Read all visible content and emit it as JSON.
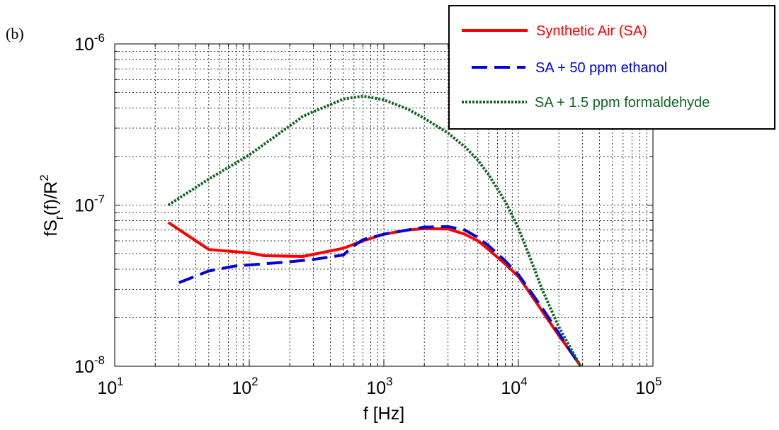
{
  "panel_label": "(b)",
  "chart_data": {
    "type": "line",
    "xscale": "log",
    "yscale": "log",
    "xlim": [
      10,
      100000
    ],
    "ylim": [
      1e-08,
      1e-06
    ],
    "grid": true,
    "legend_position": "top-right",
    "xlabel": "f [Hz]",
    "ylabel": {
      "base": "fS",
      "sub": "r",
      "mid": "(f)/R",
      "sup": "2"
    },
    "xticks": [
      {
        "base": "10",
        "exp": "1",
        "value": 10
      },
      {
        "base": "10",
        "exp": "2",
        "value": 100
      },
      {
        "base": "10",
        "exp": "3",
        "value": 1000
      },
      {
        "base": "10",
        "exp": "4",
        "value": 10000
      },
      {
        "base": "10",
        "exp": "5",
        "value": 100000
      }
    ],
    "yticks": [
      {
        "base": "10",
        "exp": "-8",
        "value": 1e-08
      },
      {
        "base": "10",
        "exp": "-7",
        "value": 1e-07
      },
      {
        "base": "10",
        "exp": "-6",
        "value": 1e-06
      }
    ],
    "series": [
      {
        "name": "Synthetic Air (SA)",
        "color": "#ff0000",
        "style": "solid",
        "x": [
          25,
          50,
          100,
          130,
          250,
          300,
          500,
          700,
          1000,
          1500,
          2000,
          3000,
          4000,
          5000,
          6000,
          8000,
          10000,
          12000,
          15000,
          20000,
          25000,
          29000
        ],
        "y": [
          7.8e-08,
          5.3e-08,
          5.05e-08,
          4.85e-08,
          4.8e-08,
          4.95e-08,
          5.4e-08,
          6e-08,
          6.6e-08,
          7e-08,
          7.15e-08,
          7.1e-08,
          6.6e-08,
          6e-08,
          5.3e-08,
          4.3e-08,
          3.6e-08,
          2.9e-08,
          2.2e-08,
          1.55e-08,
          1.2e-08,
          1e-08
        ]
      },
      {
        "name": "SA + 50 ppm ethanol",
        "color": "#0000dd",
        "style": "dashed",
        "x": [
          30,
          50,
          80,
          100,
          200,
          300,
          500,
          600,
          700,
          1000,
          1500,
          2000,
          3000,
          4000,
          5000,
          6000,
          8000,
          10000,
          12000,
          15000,
          20000,
          25000,
          29000
        ],
        "y": [
          3.3e-08,
          3.9e-08,
          4.2e-08,
          4.25e-08,
          4.45e-08,
          4.6e-08,
          4.9e-08,
          5.6e-08,
          6.1e-08,
          6.6e-08,
          7e-08,
          7.3e-08,
          7.35e-08,
          7e-08,
          6.3e-08,
          5.6e-08,
          4.5e-08,
          3.7e-08,
          3e-08,
          2.3e-08,
          1.6e-08,
          1.2e-08,
          1e-08
        ]
      },
      {
        "name": "SA + 1.5 ppm formaldehyde",
        "color": "#116622",
        "style": "dotted",
        "x": [
          25,
          50,
          100,
          200,
          250,
          300,
          400,
          500,
          700,
          1000,
          1500,
          2000,
          3000,
          4000,
          5000,
          6000,
          8000,
          10000,
          12000,
          15000,
          20000,
          25000,
          29000
        ],
        "y": [
          1e-07,
          1.45e-07,
          2.05e-07,
          3.1e-07,
          3.55e-07,
          3.8e-07,
          4.2e-07,
          4.55e-07,
          4.75e-07,
          4.5e-07,
          3.95e-07,
          3.45e-07,
          2.8e-07,
          2.3e-07,
          1.9e-07,
          1.55e-07,
          1.05e-07,
          7.2e-08,
          4.9e-08,
          3e-08,
          1.75e-08,
          1.25e-08,
          1e-08
        ]
      }
    ]
  }
}
